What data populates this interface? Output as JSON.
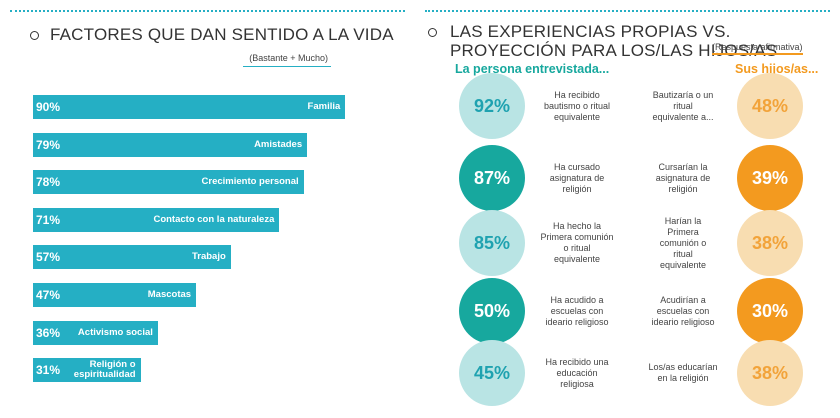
{
  "chart_data": [
    {
      "type": "bar",
      "title": "FACTORES QUE DAN SENTIDO A LA VIDA",
      "subtitle": "(Bastante + Mucho)",
      "categories": [
        "Familia",
        "Amistades",
        "Crecimiento personal",
        "Contacto con la naturaleza",
        "Trabajo",
        "Mascotas",
        "Activismo social",
        "Religión o\nespiritualidad"
      ],
      "values": [
        90,
        79,
        78,
        71,
        57,
        47,
        36,
        31
      ],
      "value_labels": [
        "90%",
        "79%",
        "78%",
        "71%",
        "57%",
        "47%",
        "36%",
        "31%"
      ],
      "xlim": [
        0,
        100
      ],
      "color": "#25afc4"
    },
    {
      "type": "circle",
      "title": "LAS EXPERIENCIAS PROPIAS VS. PROYECCIÓN PARA LOS/LAS HIJOS/AS",
      "subtitle": "(Respuesta afirmativa)",
      "categories": [
        "Ha recibido\nbautismo o ritual\nequivalente",
        "Ha cursado\nasignatura de\nreligión",
        "Ha hecho la\nPrimera comunión\no ritual\nequivalente",
        "Ha acudido a\nescuelas con\nideario religioso",
        "Ha recibido una\neducación\nreligiosa"
      ],
      "categories_right": [
        "Bautizaría o un\nritual\nequivalente a...",
        "Cursarían la\nasignatura de\nreligión",
        "Harían la\nPrimera\ncomunión o\nritual\nequivalente",
        "Acudirían a\nescuelas con\nideario religioso",
        "Los/as educarían\nen la religión"
      ],
      "series": [
        {
          "name": "La persona entrevistada...",
          "color": "#17a89e",
          "light_color": "#b9e4e4",
          "text_color": "#1fa2b0",
          "values": [
            92,
            87,
            85,
            50,
            45
          ],
          "value_labels": [
            "92%",
            "87%",
            "85%",
            "50%",
            "45%"
          ]
        },
        {
          "name": "Sus hijos/as...",
          "color": "#f39a1f",
          "light_color": "#f8ddb1",
          "text_color": "#f2a33a",
          "values": [
            48,
            39,
            38,
            30,
            38
          ],
          "value_labels": [
            "48%",
            "39%",
            "38%",
            "30%",
            "38%"
          ]
        }
      ]
    }
  ]
}
